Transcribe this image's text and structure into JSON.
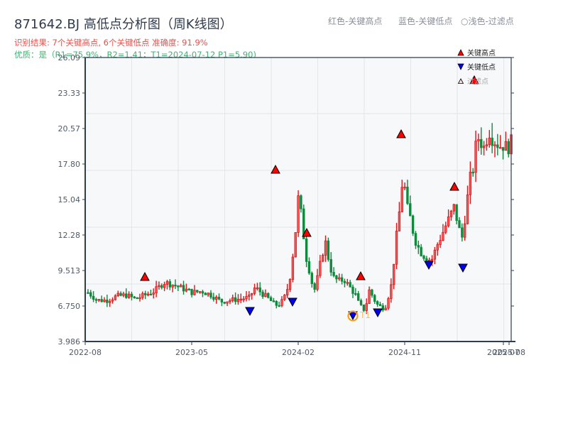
{
  "header": {
    "title": "871642.BJ 高低点分析图（周K线图）",
    "result_line": "识别结果: 7个关键高点, 6个关键低点  准确度: 91.9%",
    "quality_line": "优质：是（R1=75.9%，R2=1.41；T1=2024-07-12 P1=5.90)"
  },
  "top_legend": {
    "red": "红色-关键高点",
    "blue": "蓝色-关键低点",
    "faded": "○浅色-过滤点"
  },
  "inner_legend": {
    "high": "关键高点",
    "low": "关键低点",
    "filtered": "过滤点"
  },
  "colors": {
    "up": "#d7191c",
    "down": "#0e8a3c",
    "high_marker": "#ff0000",
    "low_marker": "#0000ee",
    "t1_ring": "#f0a020",
    "axis": "#2f3e52",
    "grid": "#e3e6ea",
    "plot_bg": "#f6f8fa"
  },
  "chart_data": {
    "type": "candlestick",
    "title": "871642.BJ 高低点分析图（周K线图）",
    "xlabel": "",
    "ylabel": "",
    "ylim": [
      3.986,
      26.09
    ],
    "yticks": [
      "3.986",
      "6.750",
      "9.513",
      "12.28",
      "15.04",
      "17.80",
      "20.57",
      "23.33",
      "26.09"
    ],
    "xticks": [
      "2022-08",
      "2023-05",
      "2024-02",
      "2024-11",
      "2025-07",
      "2025-08"
    ],
    "grid": true,
    "legend_position": "upper right",
    "key_highs": [
      {
        "date": "2023-01",
        "price": 8.96
      },
      {
        "date": "2023-12",
        "price": 17.3
      },
      {
        "date": "2024-03",
        "price": 12.4
      },
      {
        "date": "2024-07",
        "price": 9.0
      },
      {
        "date": "2024-10",
        "price": 20.1
      },
      {
        "date": "2025-03",
        "price": 15.97
      },
      {
        "date": "2025-05",
        "price": 24.3
      }
    ],
    "key_lows": [
      {
        "date": "2023-11",
        "price": 6.4
      },
      {
        "date": "2024-02",
        "price": 7.1
      },
      {
        "date": "2024-07-12",
        "price": 5.9,
        "label": "T1"
      },
      {
        "date": "2024-09",
        "price": 6.3
      },
      {
        "date": "2025-01",
        "price": 9.95
      },
      {
        "date": "2025-04",
        "price": 9.7
      }
    ],
    "annotation": {
      "label": "T1",
      "date": "2024-07-12",
      "price": 5.9
    },
    "weekly_close_path": [
      [
        0,
        7.8
      ],
      [
        5,
        7.2
      ],
      [
        10,
        7.2
      ],
      [
        15,
        7.5
      ],
      [
        20,
        7.6
      ],
      [
        25,
        7.3
      ],
      [
        30,
        7.6
      ],
      [
        35,
        7.9
      ],
      [
        38,
        8.3
      ],
      [
        40,
        8.6
      ],
      [
        45,
        8.4
      ],
      [
        50,
        8.1
      ],
      [
        55,
        7.8
      ],
      [
        60,
        7.9
      ],
      [
        65,
        7.6
      ],
      [
        70,
        7.1
      ],
      [
        75,
        7.2
      ],
      [
        80,
        7.3
      ],
      [
        85,
        7.4
      ],
      [
        88,
        8.2
      ],
      [
        92,
        7.7
      ],
      [
        96,
        7.2
      ],
      [
        98,
        6.9
      ],
      [
        100,
        6.8
      ],
      [
        103,
        7.2
      ],
      [
        106,
        8.5
      ],
      [
        109,
        12.0
      ],
      [
        111,
        15.5
      ],
      [
        113,
        13.0
      ],
      [
        115,
        10.5
      ],
      [
        117,
        9.3
      ],
      [
        119,
        7.8
      ],
      [
        121,
        9.0
      ],
      [
        123,
        10.5
      ],
      [
        125,
        11.8
      ],
      [
        127,
        10.2
      ],
      [
        129,
        9.0
      ],
      [
        132,
        8.7
      ],
      [
        135,
        8.8
      ],
      [
        138,
        8.2
      ],
      [
        141,
        7.6
      ],
      [
        143,
        6.8
      ],
      [
        146,
        6.4
      ],
      [
        148,
        8.0
      ],
      [
        150,
        7.5
      ],
      [
        152,
        6.9
      ],
      [
        155,
        6.6
      ],
      [
        157,
        6.8
      ],
      [
        160,
        8.5
      ],
      [
        162,
        11.5
      ],
      [
        164,
        14.0
      ],
      [
        166,
        17.0
      ],
      [
        168,
        14.5
      ],
      [
        170,
        13.5
      ],
      [
        172,
        12.0
      ],
      [
        175,
        11.0
      ],
      [
        178,
        10.5
      ],
      [
        181,
        10.3
      ],
      [
        184,
        11.5
      ],
      [
        187,
        12.5
      ],
      [
        190,
        13.5
      ],
      [
        193,
        14.5
      ],
      [
        195,
        13.0
      ],
      [
        197,
        12.0
      ],
      [
        199,
        14.0
      ],
      [
        201,
        16.5
      ],
      [
        203,
        17.5
      ],
      [
        205,
        20.0
      ],
      [
        207,
        19.5
      ],
      [
        209,
        19.0
      ],
      [
        211,
        20.5
      ],
      [
        213,
        19.8
      ],
      [
        215,
        19.5
      ],
      [
        217,
        19.2
      ],
      [
        219,
        19.3
      ],
      [
        221,
        19.0
      ],
      [
        223,
        19.5
      ]
    ]
  }
}
